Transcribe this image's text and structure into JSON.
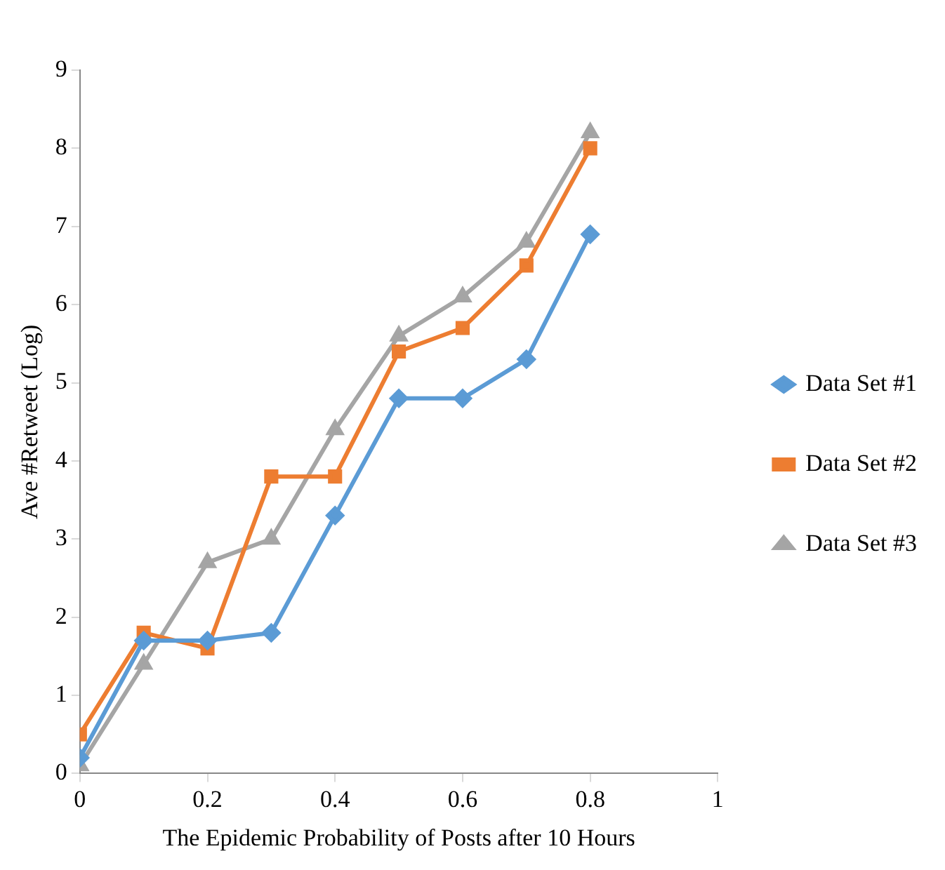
{
  "chart_data": {
    "type": "line",
    "xlabel": "The Epidemic Probability of Posts after 10 Hours",
    "ylabel": "Ave #Retweet (Log)",
    "x": [
      0,
      0.1,
      0.2,
      0.3,
      0.4,
      0.5,
      0.6,
      0.7,
      0.8
    ],
    "xlim": [
      0,
      1
    ],
    "xticks": [
      0,
      0.2,
      0.4,
      0.6,
      0.8,
      1
    ],
    "ylim": [
      0,
      9
    ],
    "yticks": [
      0,
      1,
      2,
      3,
      4,
      5,
      6,
      7,
      8,
      9
    ],
    "grid": false,
    "legend": "right",
    "line_style": "solid",
    "series": [
      {
        "name": "Data Set #1",
        "color": "#5b9bd5",
        "marker": "diamond",
        "values": [
          0.2,
          1.7,
          1.7,
          1.8,
          3.3,
          4.8,
          4.8,
          5.3,
          6.9
        ]
      },
      {
        "name": "Data Set #2",
        "color": "#ed7d31",
        "marker": "square",
        "values": [
          0.5,
          1.8,
          1.6,
          3.8,
          3.8,
          5.4,
          5.7,
          6.5,
          8.0
        ]
      },
      {
        "name": "Data Set #3",
        "color": "#a5a5a5",
        "marker": "triangle",
        "values": [
          0.1,
          1.4,
          2.7,
          3.0,
          4.4,
          5.6,
          6.1,
          6.8,
          8.2
        ]
      }
    ]
  }
}
